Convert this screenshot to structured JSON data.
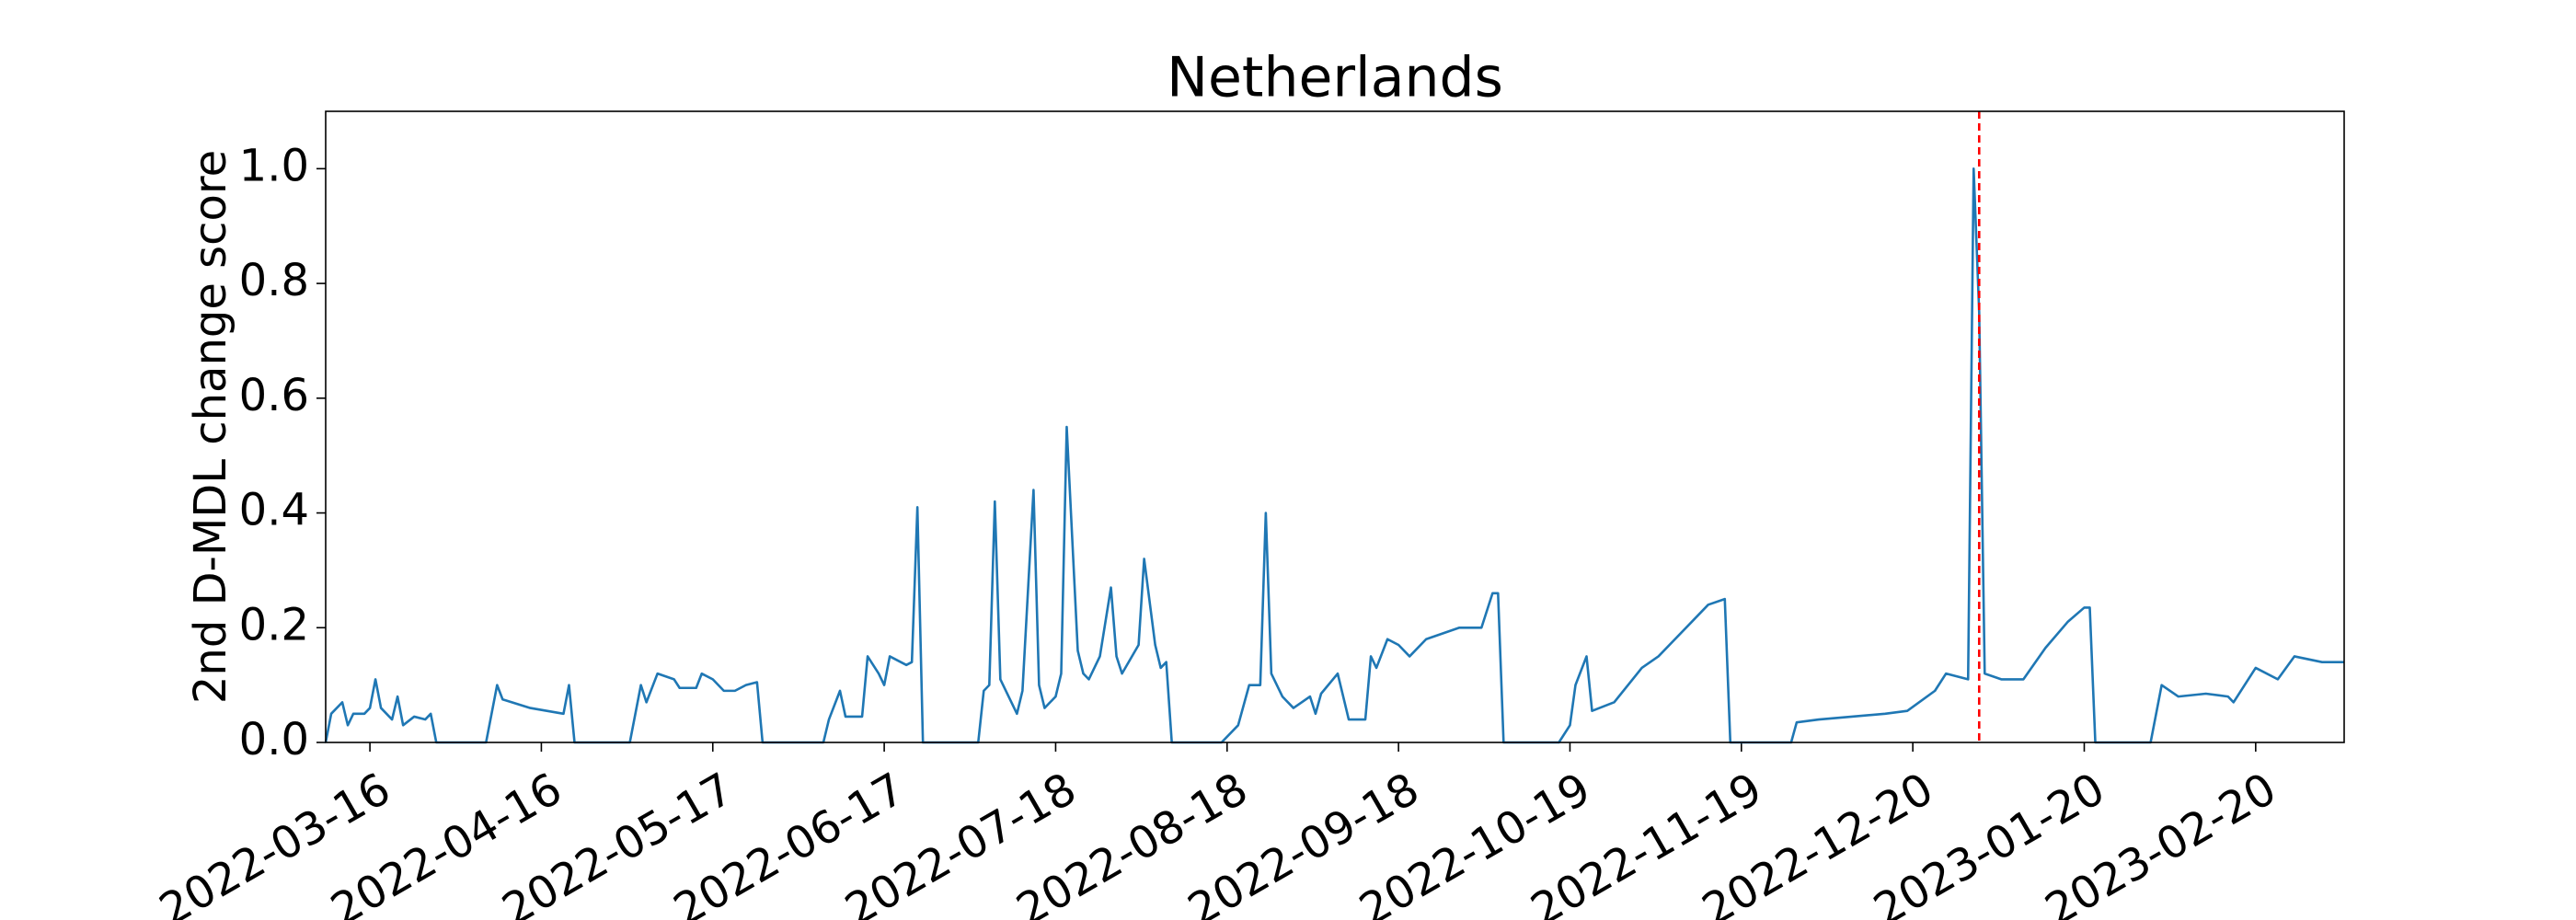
{
  "chart_data": {
    "type": "line",
    "title": "Netherlands",
    "ylabel": "2nd D-MDL change score",
    "color": "#1f77b4",
    "x": [
      "2022-03-08",
      "2022-03-09",
      "2022-03-11",
      "2022-03-12",
      "2022-03-13",
      "2022-03-15",
      "2022-03-16",
      "2022-03-17",
      "2022-03-18",
      "2022-03-20",
      "2022-03-21",
      "2022-03-22",
      "2022-03-24",
      "2022-03-26",
      "2022-03-27",
      "2022-03-28",
      "2022-04-06",
      "2022-04-08",
      "2022-04-09",
      "2022-04-14",
      "2022-04-20",
      "2022-04-21",
      "2022-04-22",
      "2022-05-02",
      "2022-05-04",
      "2022-05-05",
      "2022-05-07",
      "2022-05-10",
      "2022-05-11",
      "2022-05-14",
      "2022-05-15",
      "2022-05-17",
      "2022-05-19",
      "2022-05-21",
      "2022-05-23",
      "2022-05-25",
      "2022-05-26",
      "2022-06-06",
      "2022-06-07",
      "2022-06-09",
      "2022-06-10",
      "2022-06-13",
      "2022-06-14",
      "2022-06-16",
      "2022-06-17",
      "2022-06-18",
      "2022-06-21",
      "2022-06-22",
      "2022-06-23",
      "2022-06-24",
      "2022-07-04",
      "2022-07-05",
      "2022-07-06",
      "2022-07-07",
      "2022-07-08",
      "2022-07-11",
      "2022-07-12",
      "2022-07-14",
      "2022-07-15",
      "2022-07-16",
      "2022-07-18",
      "2022-07-19",
      "2022-07-20",
      "2022-07-22",
      "2022-07-23",
      "2022-07-24",
      "2022-07-26",
      "2022-07-28",
      "2022-07-29",
      "2022-07-30",
      "2022-08-02",
      "2022-08-03",
      "2022-08-05",
      "2022-08-06",
      "2022-08-07",
      "2022-08-08",
      "2022-08-17",
      "2022-08-20",
      "2022-08-22",
      "2022-08-24",
      "2022-08-25",
      "2022-08-26",
      "2022-08-28",
      "2022-08-30",
      "2022-09-02",
      "2022-09-03",
      "2022-09-04",
      "2022-09-07",
      "2022-09-09",
      "2022-09-12",
      "2022-09-13",
      "2022-09-14",
      "2022-09-16",
      "2022-09-18",
      "2022-09-20",
      "2022-09-23",
      "2022-09-29",
      "2022-10-03",
      "2022-10-05",
      "2022-10-06",
      "2022-10-07",
      "2022-10-17",
      "2022-10-19",
      "2022-10-20",
      "2022-10-22",
      "2022-10-23",
      "2022-10-27",
      "2022-11-01",
      "2022-11-04",
      "2022-11-07",
      "2022-11-10",
      "2022-11-13",
      "2022-11-16",
      "2022-11-17",
      "2022-11-28",
      "2022-11-29",
      "2022-12-03",
      "2022-12-09",
      "2022-12-15",
      "2022-12-19",
      "2022-12-24",
      "2022-12-26",
      "2022-12-30",
      "2022-12-31",
      "2023-01-01",
      "2023-01-02",
      "2023-01-05",
      "2023-01-09",
      "2023-01-13",
      "2023-01-17",
      "2023-01-20",
      "2023-01-21",
      "2023-01-22",
      "2023-02-01",
      "2023-02-03",
      "2023-02-06",
      "2023-02-11",
      "2023-02-15",
      "2023-02-16",
      "2023-02-20",
      "2023-02-24",
      "2023-02-27",
      "2023-03-04",
      "2023-03-08"
    ],
    "values": [
      0.0,
      0.05,
      0.07,
      0.03,
      0.05,
      0.05,
      0.06,
      0.11,
      0.06,
      0.04,
      0.08,
      0.03,
      0.045,
      0.04,
      0.05,
      0.0,
      0.0,
      0.1,
      0.075,
      0.06,
      0.05,
      0.1,
      0.0,
      0.0,
      0.1,
      0.07,
      0.12,
      0.11,
      0.095,
      0.095,
      0.12,
      0.11,
      0.09,
      0.09,
      0.1,
      0.105,
      0.0,
      0.0,
      0.04,
      0.09,
      0.045,
      0.045,
      0.15,
      0.12,
      0.1,
      0.15,
      0.135,
      0.14,
      0.41,
      0.0,
      0.0,
      0.09,
      0.1,
      0.42,
      0.11,
      0.05,
      0.09,
      0.44,
      0.1,
      0.06,
      0.08,
      0.12,
      0.55,
      0.16,
      0.12,
      0.11,
      0.15,
      0.27,
      0.15,
      0.12,
      0.17,
      0.32,
      0.17,
      0.13,
      0.14,
      0.0,
      0.0,
      0.03,
      0.1,
      0.1,
      0.4,
      0.12,
      0.08,
      0.06,
      0.08,
      0.05,
      0.085,
      0.12,
      0.04,
      0.04,
      0.15,
      0.13,
      0.18,
      0.17,
      0.15,
      0.18,
      0.2,
      0.2,
      0.26,
      0.26,
      0.0,
      0.0,
      0.03,
      0.1,
      0.15,
      0.055,
      0.07,
      0.13,
      0.15,
      0.18,
      0.21,
      0.24,
      0.25,
      0.0,
      0.0,
      0.035,
      0.04,
      0.045,
      0.05,
      0.055,
      0.09,
      0.12,
      0.11,
      1.0,
      0.75,
      0.12,
      0.11,
      0.11,
      0.165,
      0.21,
      0.235,
      0.235,
      0.0,
      0.0,
      0.1,
      0.08,
      0.085,
      0.08,
      0.07,
      0.13,
      0.11,
      0.15,
      0.14,
      0.14
    ],
    "xlim": [
      "2022-03-08",
      "2023-03-08"
    ],
    "xticks": [
      "2022-03-16",
      "2022-04-16",
      "2022-05-17",
      "2022-06-17",
      "2022-07-18",
      "2022-08-18",
      "2022-09-18",
      "2022-10-19",
      "2022-11-19",
      "2022-12-20",
      "2023-01-20",
      "2023-02-20"
    ],
    "ylim": [
      0,
      1.1
    ],
    "yticks": [
      {
        "value": 0,
        "label": "0.0"
      },
      0.2,
      0.4,
      0.6,
      0.8,
      {
        "value": 1,
        "label": "1.0"
      }
    ],
    "vline": {
      "x": "2023-01-01",
      "color": "#ff0000"
    }
  }
}
